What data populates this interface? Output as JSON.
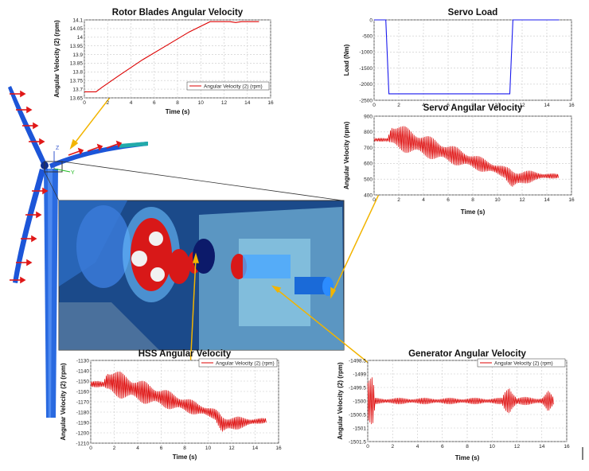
{
  "chart_data": [
    {
      "id": "rotor",
      "type": "line",
      "title": "Rotor Blades Angular Velocity",
      "xlabel": "Time (s)",
      "ylabel": "Angular Velocity (2) (rpm)",
      "legend": "Angular Velocity (2) (rpm)",
      "xlim": [
        0,
        16
      ],
      "ylim": [
        13.65,
        14.1
      ],
      "xticks": [
        0,
        2,
        4,
        6,
        8,
        10,
        12,
        14,
        16
      ],
      "yticks": [
        13.65,
        13.7,
        13.75,
        13.8,
        13.85,
        13.9,
        13.95,
        14,
        14.05,
        14.1
      ],
      "ytick_labels": [
        "13.65",
        "13.7",
        "13.75",
        "13.8",
        "13.85",
        "13.9",
        "13.95",
        "14",
        "14.05",
        "14.1"
      ],
      "series": [
        {
          "name": "Angular Velocity (2) (rpm)",
          "color": "#dd0000",
          "x": [
            0,
            1,
            1.5,
            3,
            5,
            7,
            9,
            10.8,
            11,
            12.5,
            13,
            13.5,
            15
          ],
          "y": [
            13.685,
            13.685,
            13.71,
            13.78,
            13.87,
            13.95,
            14.03,
            14.09,
            14.09,
            14.09,
            14.085,
            14.09,
            14.09
          ]
        }
      ]
    },
    {
      "id": "servoload",
      "type": "line",
      "title": "Servo Load",
      "xlabel": "",
      "ylabel": "Load (Nm)",
      "legend": "",
      "xlim": [
        0,
        16
      ],
      "ylim": [
        -2500,
        0
      ],
      "xticks": [
        0,
        2,
        4,
        6,
        8,
        10,
        12,
        14,
        16
      ],
      "yticks": [
        0,
        -500,
        -1000,
        -1500,
        -2000,
        -2500
      ],
      "ytick_labels": [
        "0",
        "-500",
        "-1000",
        "-1500",
        "-2000",
        "-2500"
      ],
      "series": [
        {
          "name": "Load",
          "color": "#1a1aee",
          "x": [
            0,
            0.95,
            1.2,
            11.0,
            11.25,
            15
          ],
          "y": [
            0,
            0,
            -2300,
            -2300,
            0,
            0
          ]
        }
      ]
    },
    {
      "id": "servovel",
      "type": "line",
      "title": "Servo Angular Velocity",
      "xlabel": "Time (s)",
      "ylabel": "Angular Velocity (rpm)",
      "legend": "",
      "xlim": [
        0,
        16
      ],
      "ylim": [
        400,
        900
      ],
      "xticks": [
        0,
        2,
        4,
        6,
        8,
        10,
        12,
        14,
        16
      ],
      "yticks": [
        400,
        500,
        600,
        700,
        800,
        900
      ],
      "ytick_labels": [
        "400",
        "500",
        "600",
        "700",
        "800",
        "900"
      ],
      "series": [
        {
          "name": "Angular Velocity",
          "color": "#dd0000",
          "osc": {
            "baseline": [
              [
                0,
                750
              ],
              [
                1.1,
                750
              ],
              [
                1.4,
                780
              ],
              [
                10.6,
                545
              ],
              [
                11.2,
                500
              ],
              [
                13,
                520
              ],
              [
                15,
                520
              ]
            ],
            "amplitude": [
              [
                0,
                10
              ],
              [
                1.1,
                12
              ],
              [
                1.4,
                90
              ],
              [
                10.6,
                35
              ],
              [
                11.2,
                70
              ],
              [
                13,
                30
              ],
              [
                15,
                12
              ]
            ]
          }
        }
      ]
    },
    {
      "id": "hss",
      "type": "line",
      "title": "HSS Angular Velocity",
      "xlabel": "Time (s)",
      "ylabel": "Angular Velocity (2) (rpm)",
      "legend": "Angular Velocity (2) (rpm)",
      "xlim": [
        0,
        16
      ],
      "ylim": [
        -1210,
        -1130
      ],
      "xticks": [
        0,
        2,
        4,
        6,
        8,
        10,
        12,
        14,
        16
      ],
      "yticks": [
        -1130,
        -1140,
        -1150,
        -1160,
        -1170,
        -1180,
        -1190,
        -1200,
        -1210
      ],
      "ytick_labels": [
        "-1130",
        "-1140",
        "-1150",
        "-1160",
        "-1170",
        "-1180",
        "-1190",
        "-1200",
        "-1210"
      ],
      "series": [
        {
          "name": "Angular Velocity (2) (rpm)",
          "color": "#dd0000",
          "osc": {
            "baseline": [
              [
                0,
                -1153
              ],
              [
                1.1,
                -1153
              ],
              [
                1.4,
                -1150
              ],
              [
                10.6,
                -1182
              ],
              [
                11.2,
                -1192
              ],
              [
                13,
                -1190
              ],
              [
                15,
                -1188
              ]
            ],
            "amplitude": [
              [
                0,
                3
              ],
              [
                1.1,
                3
              ],
              [
                1.4,
                14
              ],
              [
                10.6,
                5
              ],
              [
                11.2,
                10
              ],
              [
                13,
                5
              ],
              [
                15,
                2
              ]
            ]
          }
        }
      ]
    },
    {
      "id": "gen",
      "type": "line",
      "title": "Generator Angular Velocity",
      "xlabel": "Time (s)",
      "ylabel": "Angular Velocity (2) (rpm)",
      "legend": "Angular Velocity (2) (rpm)",
      "xlim": [
        0,
        16
      ],
      "ylim": [
        -1501.5,
        -1498.5
      ],
      "xticks": [
        0,
        2,
        4,
        6,
        8,
        10,
        12,
        14,
        16
      ],
      "yticks": [
        -1498.5,
        -1499,
        -1499.5,
        -1500,
        -1500.5,
        -1501,
        -1501.5
      ],
      "ytick_labels": [
        "-1498.5",
        "-1499",
        "-1499.5",
        "-1500",
        "-1500.5",
        "-1501",
        "-1501.5"
      ],
      "series": [
        {
          "name": "Angular Velocity (2) (rpm)",
          "color": "#dd0000",
          "osc": {
            "baseline": [
              [
                0,
                -1500
              ],
              [
                15,
                -1500
              ]
            ],
            "amplitude": [
              [
                0,
                0.9
              ],
              [
                0.4,
                0.9
              ],
              [
                0.6,
                0.12
              ],
              [
                10.8,
                0.12
              ],
              [
                11.4,
                0.8
              ],
              [
                12,
                0.15
              ],
              [
                14,
                0.15
              ],
              [
                14.5,
                0.4
              ],
              [
                15,
                0.1
              ]
            ]
          }
        }
      ]
    }
  ],
  "scene": {
    "axis_z": "Z",
    "axis_y": "Y",
    "colors": {
      "blade": "#1c55d8",
      "tower": "#2a6ae0",
      "arrow": "#e01818",
      "callout": "#f2b400",
      "inset_bg": "#1b4a8a",
      "gear": "#d81818"
    }
  }
}
